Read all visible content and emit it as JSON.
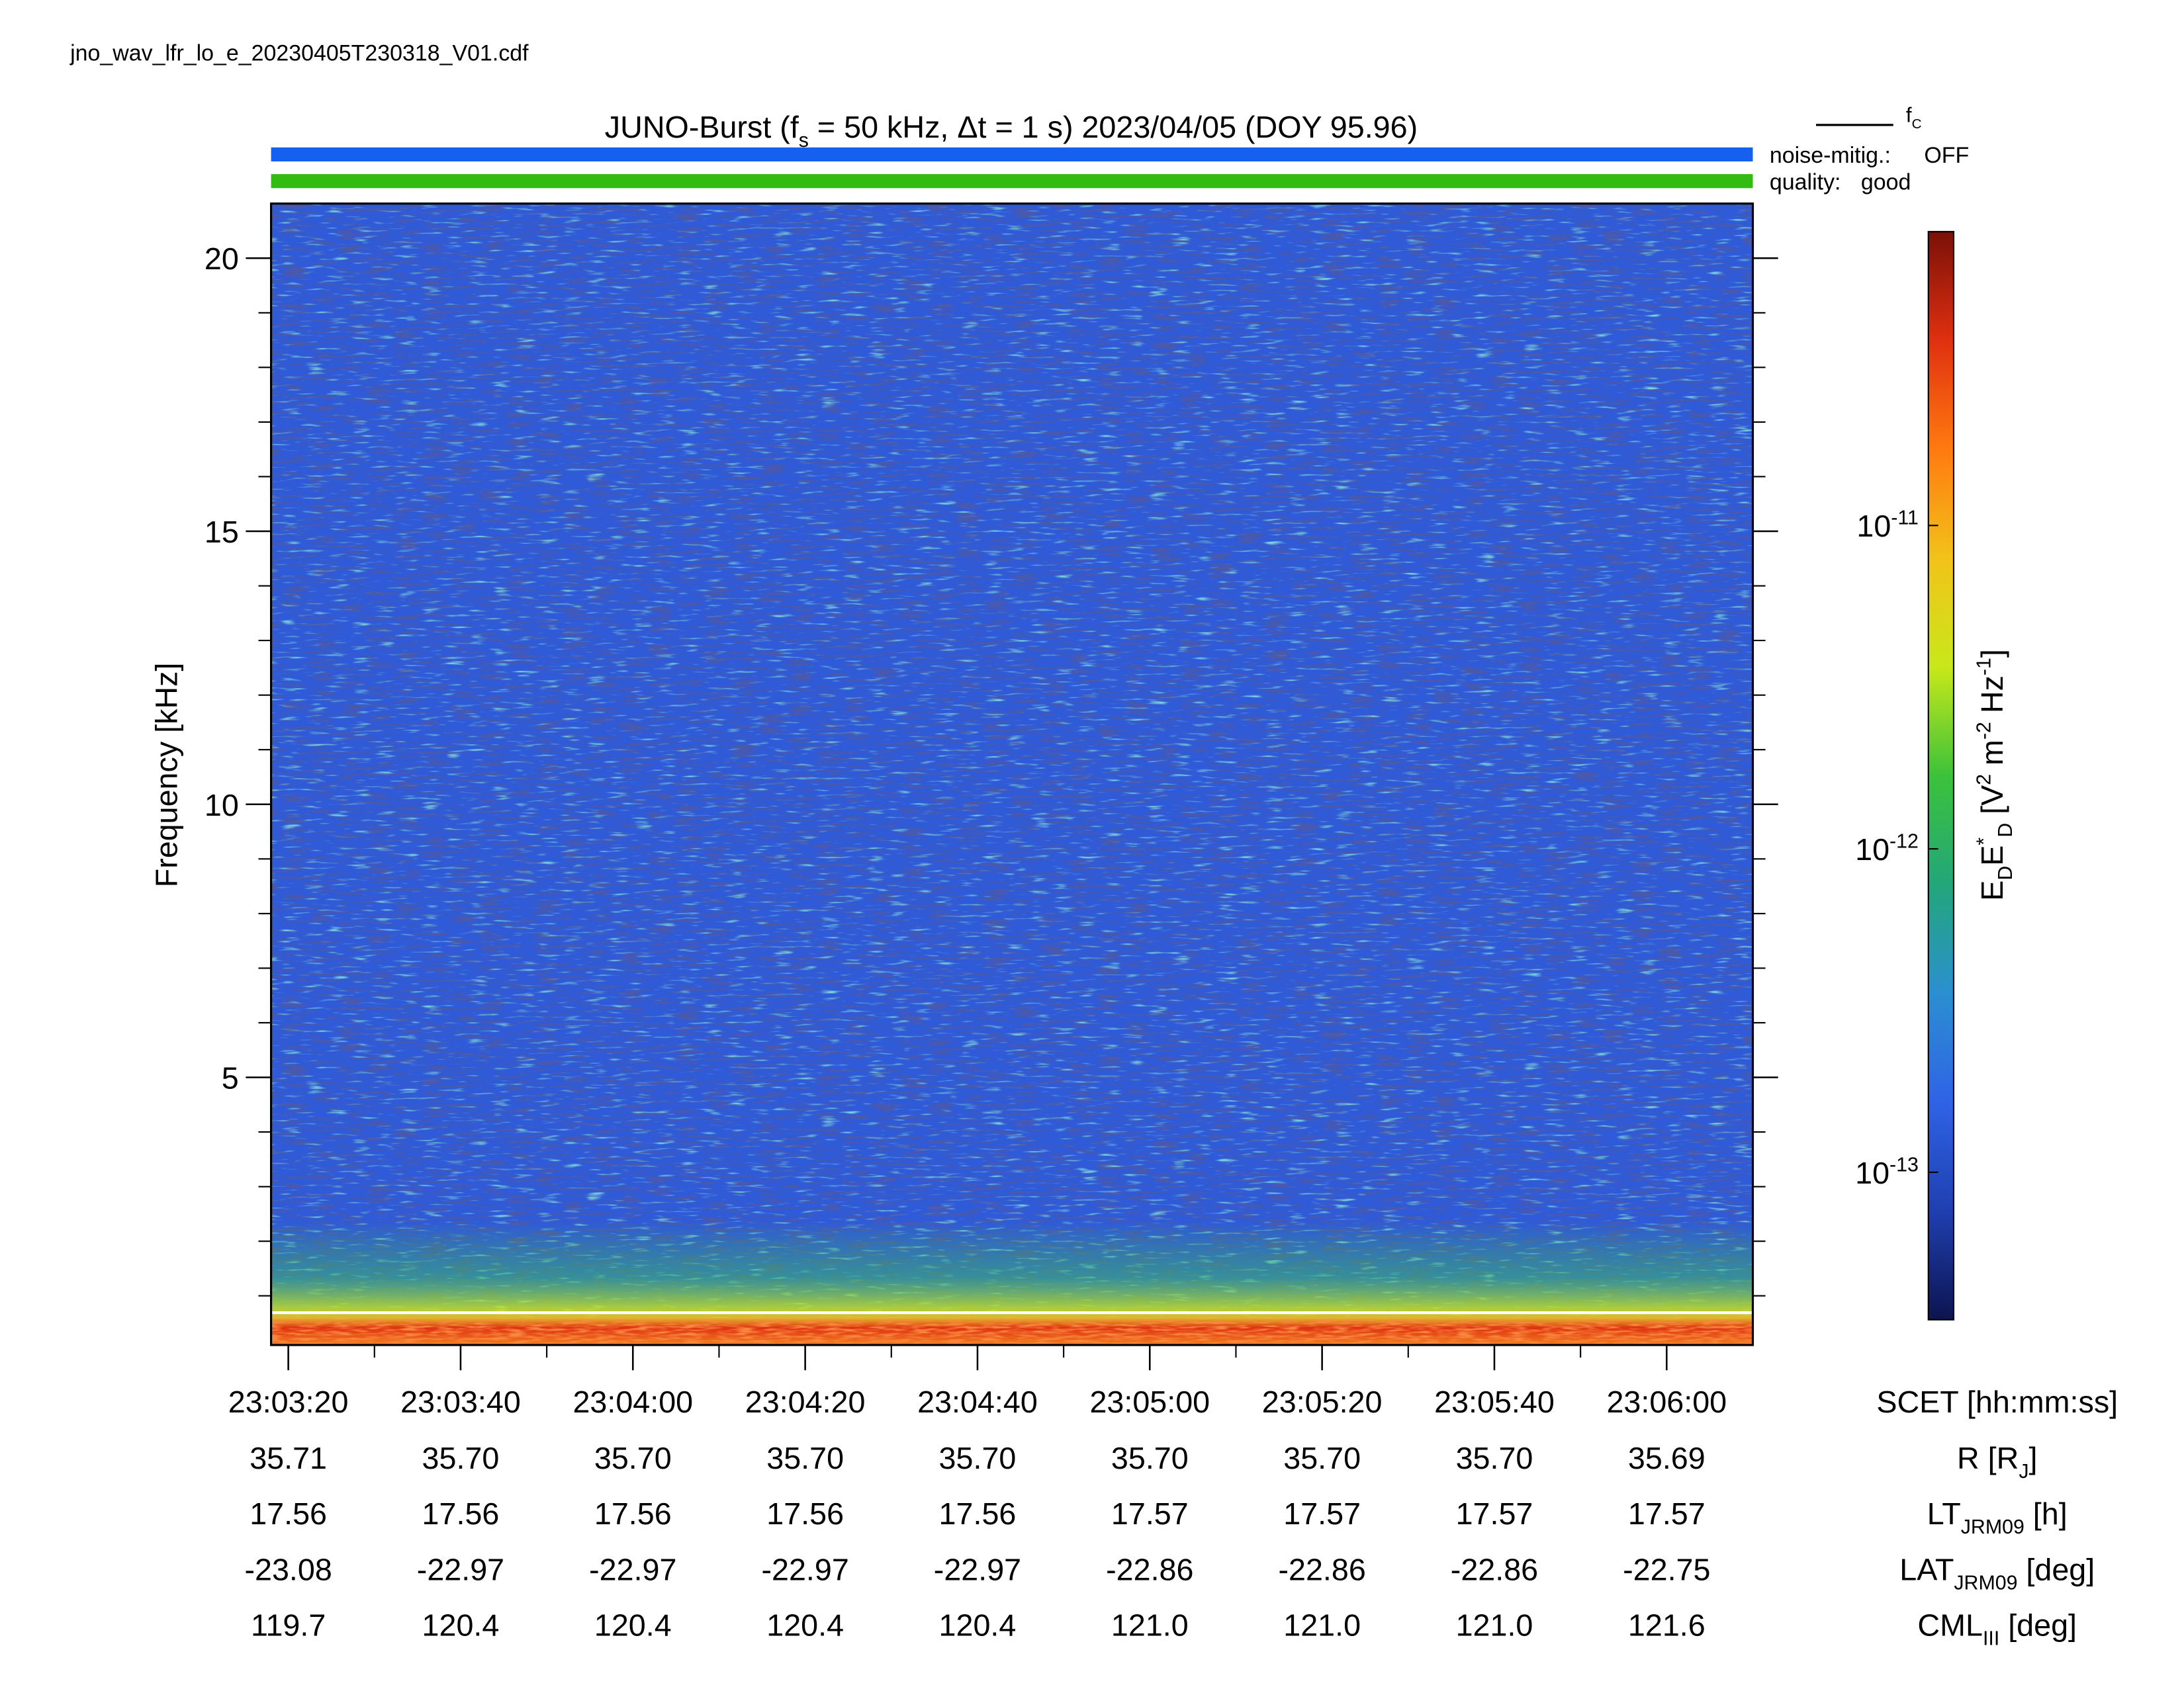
{
  "chart_data": {
    "type": "spectrogram",
    "filename": "jno_wav_lfr_lo_e_20230405T230318_V01.cdf",
    "title": [
      {
        "text": "JUNO-Burst (f"
      },
      {
        "text": "s",
        "style": "sub"
      },
      {
        "text": " = 50 kHz, Δt = 1 s)  2023/04/05 (DOY 95.96)"
      }
    ],
    "legend": {
      "line_label": [
        {
          "text": "f"
        },
        {
          "text": "C",
          "style": "sub"
        }
      ],
      "line_color": "#000000",
      "noise_label": "noise-mitig.:",
      "noise_value": "OFF",
      "noise_color": "#1560ee",
      "quality_label": "quality:",
      "quality_value": "good",
      "quality_color": "#33bb11"
    },
    "ylabel": "Frequency [kHz]",
    "ylim": [
      0.1,
      21
    ],
    "yticks": [
      5,
      10,
      15,
      20
    ],
    "yminor": [
      1,
      2,
      3,
      4,
      6,
      7,
      8,
      9,
      11,
      12,
      13,
      14,
      16,
      17,
      18,
      19
    ],
    "xlabel": "SCET [hh:mm:ss]",
    "xlim": [
      "23:03:18",
      "23:06:10"
    ],
    "xticks": [
      "23:03:20",
      "23:03:40",
      "23:04:00",
      "23:04:20",
      "23:04:40",
      "23:05:00",
      "23:05:20",
      "23:05:40",
      "23:06:00"
    ],
    "xminor": [
      "23:03:30",
      "23:03:50",
      "23:04:10",
      "23:04:30",
      "23:04:50",
      "23:05:10",
      "23:05:30",
      "23:05:50"
    ],
    "ephemeris": [
      {
        "label": [
          {
            "text": "R [R"
          },
          {
            "text": "J",
            "style": "sub"
          },
          {
            "text": "]"
          }
        ],
        "values": [
          "35.71",
          "35.70",
          "35.70",
          "35.70",
          "35.70",
          "35.70",
          "35.70",
          "35.70",
          "35.69"
        ]
      },
      {
        "label": [
          {
            "text": "LT"
          },
          {
            "text": "JRM09",
            "style": "sub"
          },
          {
            "text": " [h]"
          }
        ],
        "values": [
          "17.56",
          "17.56",
          "17.56",
          "17.56",
          "17.56",
          "17.57",
          "17.57",
          "17.57",
          "17.57"
        ]
      },
      {
        "label": [
          {
            "text": "LAT"
          },
          {
            "text": "JRM09",
            "style": "sub"
          },
          {
            "text": " [deg]"
          }
        ],
        "values": [
          "-23.08",
          "-22.97",
          "-22.97",
          "-22.97",
          "-22.97",
          "-22.86",
          "-22.86",
          "-22.86",
          "-22.75"
        ]
      },
      {
        "label": [
          {
            "text": "CML"
          },
          {
            "text": "III",
            "style": "sub"
          },
          {
            "text": " [deg]"
          }
        ],
        "values": [
          "119.7",
          "120.4",
          "120.4",
          "120.4",
          "120.4",
          "121.0",
          "121.0",
          "121.0",
          "121.6"
        ]
      }
    ],
    "colorbar": {
      "label": [
        {
          "text": "E"
        },
        {
          "text": "D",
          "style": "sub"
        },
        {
          "text": "E"
        },
        {
          "text": "*",
          "style": "sup"
        },
        {
          "text": "D",
          "style": "sub"
        },
        {
          "text": "  [V"
        },
        {
          "text": "2",
          "style": "sup"
        },
        {
          "text": " m"
        },
        {
          "text": "-2",
          "style": "sup"
        },
        {
          "text": " Hz"
        },
        {
          "text": "-1",
          "style": "sup"
        },
        {
          "text": "]"
        }
      ],
      "log": true,
      "clim": [
        3.5e-14,
        8.1e-11
      ],
      "ticks": [
        {
          "value": 1e-11,
          "label": [
            {
              "text": "10"
            },
            {
              "text": "-11",
              "style": "sup"
            }
          ]
        },
        {
          "value": 1e-12,
          "label": [
            {
              "text": "10"
            },
            {
              "text": "-12",
              "style": "sup"
            }
          ]
        },
        {
          "value": 1e-13,
          "label": [
            {
              "text": "10"
            },
            {
              "text": "-13",
              "style": "sup"
            }
          ]
        }
      ],
      "colormap": [
        "#0d1450",
        "#1f3fb0",
        "#2f63e6",
        "#2b8fd0",
        "#23a67a",
        "#3cc23a",
        "#c8e81a",
        "#f2c21a",
        "#ff7a10",
        "#e03010",
        "#7a1008"
      ]
    }
  }
}
